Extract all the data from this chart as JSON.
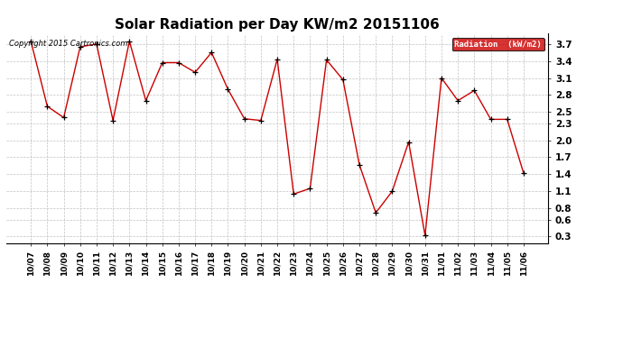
{
  "title": "Solar Radiation per Day KW/m2 20151106",
  "copyright": "Copyright 2015 Cartronics.com",
  "legend_label": "Radiation  (kW/m2)",
  "x_labels": [
    "10/07",
    "10/08",
    "10/09",
    "10/10",
    "10/11",
    "10/12",
    "10/13",
    "10/14",
    "10/15",
    "10/16",
    "10/17",
    "10/18",
    "10/19",
    "10/20",
    "10/21",
    "10/22",
    "10/23",
    "10/24",
    "10/25",
    "10/26",
    "10/27",
    "10/28",
    "10/29",
    "10/30",
    "10/31",
    "11/01",
    "11/02",
    "11/03",
    "11/04",
    "11/05",
    "11/06"
  ],
  "y_values": [
    3.75,
    2.6,
    2.4,
    3.65,
    3.7,
    2.35,
    3.75,
    2.7,
    3.37,
    3.37,
    3.2,
    3.55,
    2.9,
    2.38,
    2.35,
    3.43,
    1.05,
    1.15,
    3.42,
    3.07,
    1.57,
    0.72,
    1.1,
    1.97,
    0.32,
    3.1,
    2.7,
    2.88,
    2.37,
    2.37,
    1.42
  ],
  "line_color": "#cc0000",
  "marker_color": "#000000",
  "bg_color": "#ffffff",
  "grid_color": "#bbbbbb",
  "title_fontsize": 11,
  "tick_fontsize": 6.5,
  "copyright_fontsize": 6,
  "ylim": [
    0.18,
    3.88
  ],
  "yticks": [
    0.3,
    0.6,
    0.8,
    1.1,
    1.4,
    1.7,
    2.0,
    2.3,
    2.5,
    2.8,
    3.1,
    3.4,
    3.7
  ],
  "legend_bg": "#cc0000",
  "legend_text_color": "#ffffff"
}
